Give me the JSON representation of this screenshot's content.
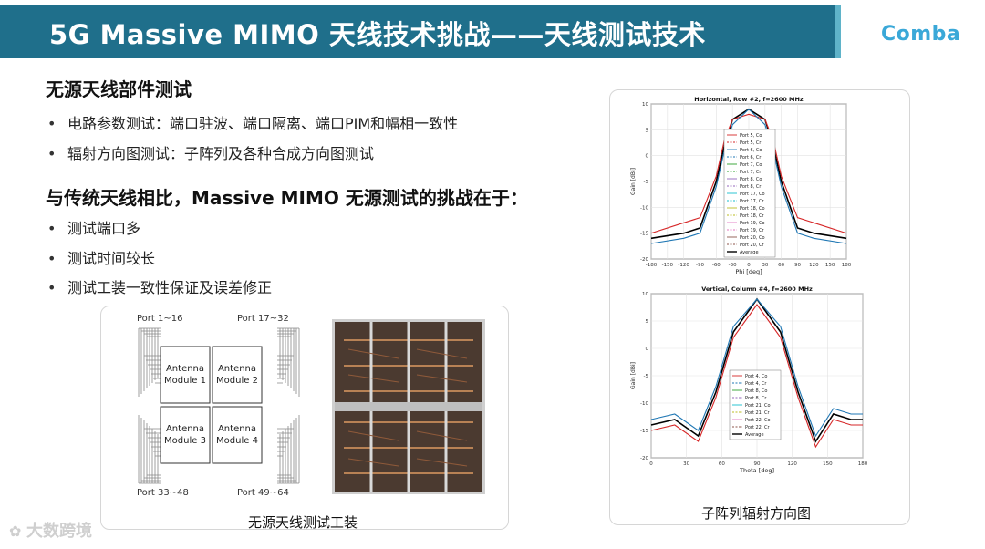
{
  "header": {
    "title": "5G Massive MIMO 天线技术挑战——天线测试技术",
    "logo": "Comba",
    "bar_color": "#1f6f8b",
    "logo_color": "#3aa8d8"
  },
  "section1": {
    "heading": "无源天线部件测试",
    "bullets": [
      "电路参数测试：端口驻波、端口隔离、端口PIM和幅相一致性",
      "辐射方向图测试：子阵列及各种合成方向图测试"
    ]
  },
  "section2": {
    "heading": "与传统天线相比，Massive MIMO 无源测试的挑战在于：",
    "bullets": [
      "测试端口多",
      "测试时间较长",
      "测试工装一致性保证及误差修正"
    ]
  },
  "fixture": {
    "port_labels": [
      "Port 1~16",
      "Port 17~32",
      "Port 33~48",
      "Port 49~64"
    ],
    "modules": [
      [
        "Antenna",
        "Module 1"
      ],
      [
        "Antenna",
        "Module 2"
      ],
      [
        "Antenna",
        "Module 3"
      ],
      [
        "Antenna",
        "Module 4"
      ]
    ],
    "caption": "无源天线测试工装"
  },
  "charts_caption": "子阵列辐射方向图",
  "chart_data": [
    {
      "type": "line",
      "title": "Horizontal, Row #2, f=2600 MHz",
      "xlabel": "Phi [deg]",
      "ylabel": "Gain [dBi]",
      "xlim": [
        -180,
        180
      ],
      "ylim": [
        -20,
        10
      ],
      "xticks": [
        "-180",
        "-150",
        "-120",
        "-90",
        "-60",
        "-30",
        "0",
        "30",
        "60",
        "90",
        "120",
        "150",
        "180"
      ],
      "yticks": [
        "10",
        "5",
        "0",
        "-5",
        "-10",
        "-15",
        "-20"
      ],
      "grid": true,
      "legend_position": "center-left",
      "legend": [
        "Port 5, Co",
        "Port 5, Cr",
        "Port 6, Co",
        "Port 6, Cr",
        "Port 7, Co",
        "Port 7, Cr",
        "Port 8, Co",
        "Port 8, Cr",
        "Port 17, Co",
        "Port 17, Cr",
        "Port 18, Co",
        "Port 18, Cr",
        "Port 19, Co",
        "Port 19, Cr",
        "Port 20, Co",
        "Port 20, Cr",
        "Average"
      ],
      "series": [
        {
          "name": "Average",
          "color": "#000000",
          "x": [
            -180,
            -120,
            -90,
            -60,
            -45,
            -30,
            0,
            30,
            45,
            60,
            90,
            120,
            180
          ],
          "y": [
            -16,
            -15,
            -14,
            -5,
            2,
            7,
            9,
            7,
            2,
            -5,
            -14,
            -15,
            -16
          ]
        },
        {
          "name": "Port 5, Co",
          "color": "#d62728",
          "x": [
            -180,
            -120,
            -90,
            -60,
            -45,
            -30,
            0,
            30,
            45,
            60,
            90,
            120,
            180
          ],
          "y": [
            -15,
            -13,
            -12,
            -4,
            3,
            7,
            8,
            7,
            3,
            -4,
            -12,
            -13,
            -15
          ]
        },
        {
          "name": "Port 6, Co",
          "color": "#1f77b4",
          "x": [
            -180,
            -120,
            -90,
            -60,
            -45,
            -30,
            0,
            30,
            45,
            60,
            90,
            120,
            180
          ],
          "y": [
            -17,
            -16,
            -15,
            -6,
            1,
            6,
            9,
            6,
            1,
            -6,
            -15,
            -16,
            -17
          ]
        }
      ]
    },
    {
      "type": "line",
      "title": "Vertical, Column #4, f=2600 MHz",
      "xlabel": "Theta [deg]",
      "ylabel": "Gain [dBi]",
      "xlim": [
        0,
        180
      ],
      "ylim": [
        -20,
        10
      ],
      "xticks": [
        "0",
        "30",
        "60",
        "90",
        "120",
        "150",
        "180"
      ],
      "yticks": [
        "10",
        "5",
        "0",
        "-5",
        "-10",
        "-15",
        "-20"
      ],
      "grid": true,
      "legend_position": "center",
      "legend": [
        "Port 4, Co",
        "Port 4, Cr",
        "Port 8, Co",
        "Port 8, Cr",
        "Port 21, Co",
        "Port 21, Cr",
        "Port 22, Co",
        "Port 22, Cr",
        "Average"
      ],
      "series": [
        {
          "name": "Average",
          "color": "#000000",
          "x": [
            0,
            20,
            40,
            55,
            70,
            90,
            110,
            125,
            140,
            155,
            170,
            180
          ],
          "y": [
            -14,
            -13,
            -16,
            -8,
            3,
            9,
            3,
            -8,
            -17,
            -12,
            -13,
            -13
          ]
        },
        {
          "name": "Port 4, Co",
          "color": "#d62728",
          "x": [
            0,
            20,
            40,
            55,
            70,
            90,
            110,
            125,
            140,
            155,
            170,
            180
          ],
          "y": [
            -15,
            -14,
            -17,
            -9,
            2,
            8,
            2,
            -9,
            -18,
            -13,
            -14,
            -14
          ]
        },
        {
          "name": "Port 8, Co",
          "color": "#1f77b4",
          "x": [
            0,
            20,
            40,
            55,
            70,
            90,
            110,
            125,
            140,
            155,
            170,
            180
          ],
          "y": [
            -13,
            -12,
            -15,
            -7,
            4,
            9,
            4,
            -7,
            -16,
            -11,
            -12,
            -12
          ]
        }
      ]
    }
  ],
  "watermark": "大数跨境"
}
